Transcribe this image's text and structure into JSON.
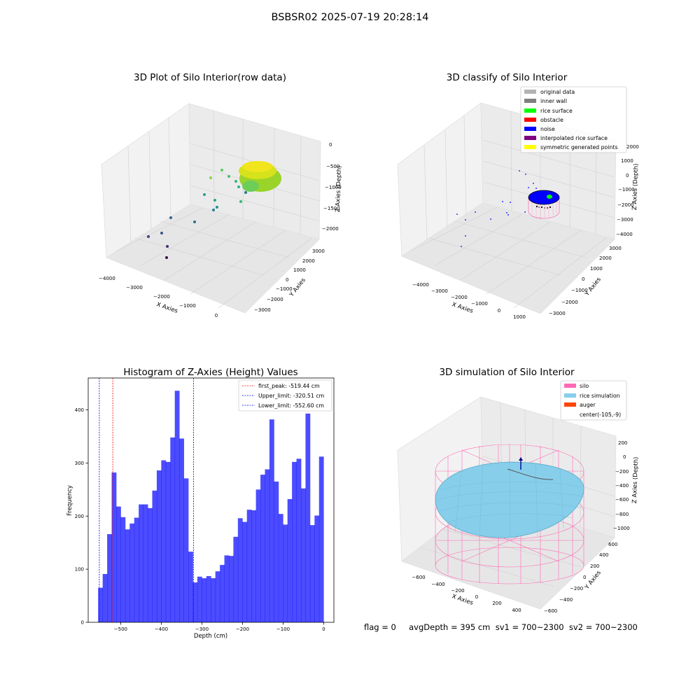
{
  "figure": {
    "suptitle": "BSBSR02 2025-07-19 20:28:14"
  },
  "panels": {
    "raw3d": {
      "title": "3D Plot of Silo Interior(row data)",
      "xlabel": "X Axies",
      "ylabel": "Y Axies",
      "zlabel": "Z Axies (Depth)",
      "xticks": [
        "−4000",
        "−3000",
        "−2000",
        "−1000",
        "0"
      ],
      "yticks": [
        "−3000",
        "−2000",
        "−1000",
        "0",
        "1000",
        "2000",
        "3000"
      ],
      "zticks": [
        "0",
        "−500",
        "−1000",
        "−1500",
        "−2000"
      ]
    },
    "classify3d": {
      "title": "3D classify of Silo Interior",
      "xlabel": "X Axies",
      "ylabel": "Y Axies",
      "zlabel": "Z Axies (Depth)",
      "xticks": [
        "−4000",
        "−3000",
        "−2000",
        "−1000",
        "0",
        "1000"
      ],
      "yticks": [
        "−3000",
        "−2000",
        "−1000",
        "0",
        "1000",
        "2000",
        "3000"
      ],
      "zticks": [
        "2000",
        "1000",
        "0",
        "−1000",
        "−2000",
        "−3000",
        "−4000"
      ],
      "legend": [
        {
          "label": "original data",
          "color": "#b3b3b3"
        },
        {
          "label": "inner wall",
          "color": "#808080"
        },
        {
          "label": "rice surface",
          "color": "#00ff00"
        },
        {
          "label": "obstacle",
          "color": "#ff0000"
        },
        {
          "label": "noise",
          "color": "#0000ff"
        },
        {
          "label": "interpolated rice surface",
          "color": "#800080"
        },
        {
          "label": "symmetric generated points",
          "color": "#ffff00"
        }
      ]
    },
    "histogram": {
      "title": "Histogram of Z-Axies (Height) Values",
      "xlabel": "Depth (cm)",
      "ylabel": "Frequency",
      "legend": [
        {
          "label": "first_peak: -519.44 cm",
          "color": "#ff0000"
        },
        {
          "label": "Upper_limit: -320.51 cm",
          "color": "#0000ff"
        },
        {
          "label": "Lower_limit: -552.60 cm",
          "color": "#0000ff"
        }
      ]
    },
    "simulation3d": {
      "title": "3D simulation of Silo Interior",
      "xlabel": "X Axies",
      "ylabel": "Y Axies",
      "zlabel": "Z Axies (Depth)",
      "xticks": [
        "−600",
        "−400",
        "−200",
        "0",
        "200",
        "400"
      ],
      "yticks": [
        "−600",
        "−400",
        "−200",
        "0",
        "200",
        "400",
        "600"
      ],
      "zticks": [
        "200",
        "0",
        "−200",
        "−400",
        "−600",
        "−800",
        "−1000"
      ],
      "legend": [
        {
          "label": "silo",
          "color": "#ff69b4"
        },
        {
          "label": "rice simulation",
          "color": "#87ceeb"
        },
        {
          "label": "auger",
          "color": "#ff4500"
        },
        {
          "label": "center(-105,-9)",
          "color": ""
        }
      ]
    }
  },
  "footer": {
    "text": "flag = 0     avgDepth = 395 cm  sv1 = 700~2300  sv2 = 700~2300"
  },
  "chart_data": [
    {
      "type": "scatter",
      "panel": "raw3d",
      "title": "3D Plot of Silo Interior(row data)",
      "xlabel": "X Axies",
      "ylabel": "Y Axies",
      "zlabel": "Z Axies (Depth)",
      "xlim": [
        -4500,
        500
      ],
      "ylim": [
        -3500,
        3500
      ],
      "zlim": [
        -2300,
        100
      ],
      "note_colormap": "viridis by depth"
    },
    {
      "type": "scatter",
      "panel": "classify3d",
      "title": "3D classify of Silo Interior",
      "xlabel": "X Axies",
      "ylabel": "Y Axies",
      "zlabel": "Z Axies (Depth)",
      "xlim": [
        -4500,
        1500
      ],
      "ylim": [
        -3500,
        3500
      ],
      "zlim": [
        -4200,
        2200
      ]
    },
    {
      "type": "bar",
      "panel": "histogram",
      "title": "Histogram of Z-Axies (Height) Values",
      "xlabel": "Depth (cm)",
      "ylabel": "Frequency",
      "xlim": [
        -580,
        25
      ],
      "ylim": [
        0,
        460
      ],
      "xticks": [
        -500,
        -400,
        -300,
        -200,
        -100,
        0
      ],
      "yticks": [
        0,
        100,
        200,
        300,
        400
      ],
      "bin_range": [
        -555.5,
        -0.5
      ],
      "bin_count": 50,
      "color": "#0000ff",
      "alpha": 0.7,
      "values": [
        65,
        91,
        166,
        282,
        218,
        198,
        175,
        186,
        197,
        222,
        222,
        215,
        248,
        286,
        305,
        302,
        348,
        436,
        346,
        271,
        133,
        75,
        86,
        83,
        87,
        83,
        96,
        108,
        126,
        125,
        161,
        196,
        189,
        212,
        211,
        250,
        278,
        288,
        382,
        265,
        204,
        184,
        232,
        302,
        308,
        252,
        393,
        183,
        201,
        312
      ],
      "vlines": [
        {
          "x": -519.44,
          "color": "#ff0000",
          "style": "dashed"
        },
        {
          "x": -320.51,
          "color": "#0000ff",
          "style": "dashed"
        },
        {
          "x": -552.6,
          "color": "#0000ff",
          "style": "dashed"
        }
      ]
    },
    {
      "type": "scatter",
      "panel": "simulation3d",
      "title": "3D simulation of Silo Interior",
      "xlabel": "X Axies",
      "ylabel": "Y Axies",
      "zlabel": "Z Axies (Depth)",
      "xlim": [
        -700,
        500
      ],
      "ylim": [
        -700,
        700
      ],
      "zlim": [
        -1100,
        300
      ]
    }
  ]
}
